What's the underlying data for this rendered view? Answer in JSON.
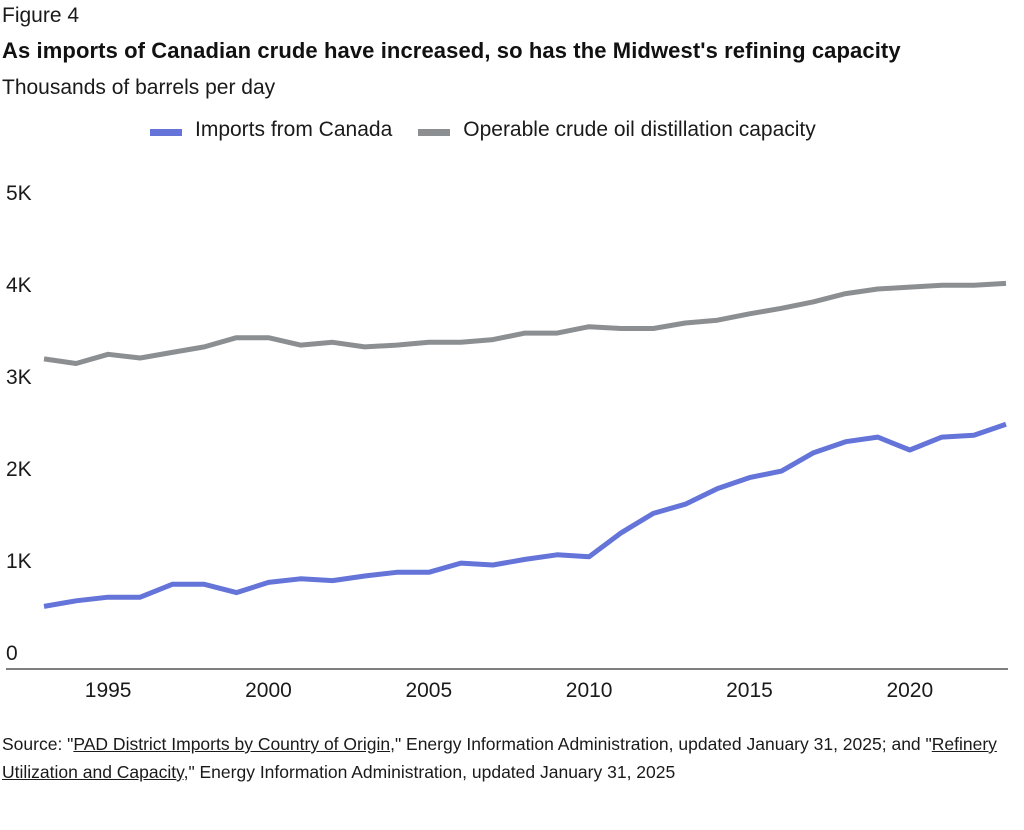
{
  "figure_label": "Figure 4",
  "title": "As imports of Canadian crude have increased, so has the Midwest's refining capacity",
  "subtitle": "Thousands of barrels per day",
  "legend": [
    {
      "label": "Imports from Canada",
      "color": "#6474d8"
    },
    {
      "label": "Operable crude oil distillation capacity",
      "color": "#8c8f92"
    }
  ],
  "source": {
    "prefix": "Source: \"",
    "link1": "PAD District Imports by Country of Origin",
    "middle": ",\" Energy Information Administration, updated January 31, 2025; and \"",
    "link2": "Refinery Utilization and Capacity",
    "suffix": ",\" Energy Information Administration, updated January 31, 2025"
  },
  "chart_data": {
    "type": "line",
    "title": "As imports of Canadian crude have increased, so has the Midwest's refining capacity",
    "subtitle": "Thousands of barrels per day",
    "xlabel": "",
    "ylabel": "Thousands of barrels per day",
    "ylim": [
      0,
      5000
    ],
    "xlim": [
      1993,
      2023
    ],
    "yticks": [
      0,
      1000,
      2000,
      3000,
      4000,
      5000
    ],
    "ytick_labels": [
      "0",
      "1K",
      "2K",
      "3K",
      "4K",
      "5K"
    ],
    "xticks": [
      1995,
      2000,
      2005,
      2010,
      2015,
      2020
    ],
    "xtick_labels": [
      "1995",
      "2000",
      "2005",
      "2010",
      "2015",
      "2020"
    ],
    "grid": false,
    "legend_position": "top-center",
    "x": [
      1993,
      1994,
      1995,
      1996,
      1997,
      1998,
      1999,
      2000,
      2001,
      2002,
      2003,
      2004,
      2005,
      2006,
      2007,
      2008,
      2009,
      2010,
      2011,
      2012,
      2013,
      2014,
      2015,
      2016,
      2017,
      2018,
      2019,
      2020,
      2021,
      2022,
      2023
    ],
    "series": [
      {
        "name": "Imports from Canada",
        "color": "#6474d8",
        "values": [
          670,
          730,
          770,
          770,
          910,
          910,
          820,
          930,
          970,
          950,
          1000,
          1040,
          1040,
          1140,
          1120,
          1180,
          1230,
          1210,
          1470,
          1680,
          1780,
          1950,
          2070,
          2140,
          2340,
          2460,
          2510,
          2370,
          2510,
          2530,
          2650
        ]
      },
      {
        "name": "Operable crude oil distillation capacity",
        "color": "#8c8f92",
        "values": [
          3360,
          3310,
          3410,
          3370,
          3430,
          3490,
          3590,
          3590,
          3510,
          3540,
          3490,
          3510,
          3540,
          3540,
          3570,
          3640,
          3640,
          3710,
          3690,
          3690,
          3750,
          3780,
          3850,
          3910,
          3980,
          4070,
          4120,
          4140,
          4160,
          4160,
          4180
        ]
      }
    ]
  }
}
